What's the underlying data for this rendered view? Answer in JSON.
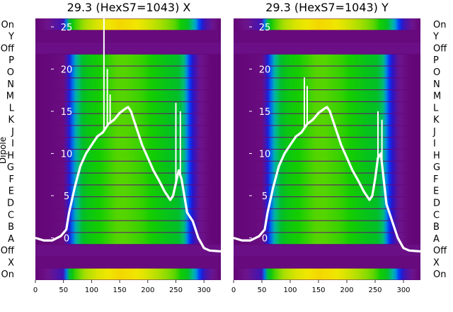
{
  "chart_data": [
    {
      "type": "heatmap",
      "title": "29.3 (HexS7=1043) X",
      "ylabel": "Dipole",
      "row_labels_top_to_bottom": [
        "On",
        "Y",
        "Off",
        "P",
        "O",
        "N",
        "M",
        "L",
        "K",
        "J",
        "I",
        "H",
        "G",
        "F",
        "E",
        "D",
        "C",
        "B",
        "A",
        "Off",
        "X",
        "On"
      ],
      "xticks": [
        0,
        50,
        100,
        150,
        200,
        250,
        300
      ],
      "xlim": [
        0,
        330
      ],
      "overlay_yticks": [
        0,
        5,
        10,
        15,
        20,
        25
      ],
      "overlay_ylim": [
        -5,
        26
      ],
      "overlay_curve": {
        "x": [
          0,
          15,
          30,
          45,
          55,
          60,
          70,
          80,
          90,
          100,
          110,
          120,
          130,
          140,
          150,
          160,
          165,
          170,
          180,
          190,
          200,
          210,
          220,
          230,
          240,
          245,
          250,
          255,
          260,
          265,
          270,
          275,
          280,
          285,
          290,
          300,
          310,
          330
        ],
        "y": [
          0,
          -0.3,
          -0.3,
          0.2,
          1,
          3,
          6,
          8.5,
          10,
          11,
          12,
          12.5,
          13.5,
          14,
          14.8,
          15.3,
          15.5,
          15,
          13,
          11,
          9.5,
          8,
          6.8,
          5.5,
          4.5,
          5,
          6.5,
          8,
          7,
          5,
          3,
          2.5,
          2,
          1,
          0,
          -1.2,
          -1.5,
          -1.6
        ]
      },
      "overlay_spikes": [
        {
          "x": 122,
          "y_top": 27
        },
        {
          "x": 128,
          "y_top": 20
        },
        {
          "x": 133,
          "y_top": 17
        },
        {
          "x": 250,
          "y_top": 16
        },
        {
          "x": 258,
          "y_top": 15
        }
      ],
      "intensity_profile": {
        "x": [
          0,
          50,
          60,
          70,
          80,
          90,
          100,
          115,
          130,
          145,
          160,
          175,
          190,
          205,
          220,
          235,
          245,
          255,
          265,
          270,
          280,
          290,
          300,
          310,
          330
        ],
        "v": [
          0.02,
          0.05,
          0.2,
          0.42,
          0.55,
          0.62,
          0.66,
          0.7,
          0.72,
          0.74,
          0.74,
          0.73,
          0.72,
          0.7,
          0.66,
          0.62,
          0.6,
          0.58,
          0.5,
          0.35,
          0.18,
          0.1,
          0.06,
          0.03,
          0.02
        ]
      },
      "on_band_profile": {
        "x": [
          0,
          50,
          60,
          70,
          90,
          110,
          130,
          150,
          170,
          190,
          210,
          230,
          250,
          270,
          285,
          300,
          330
        ],
        "v": [
          0.02,
          0.15,
          0.55,
          0.72,
          0.8,
          0.84,
          0.86,
          0.88,
          0.87,
          0.85,
          0.82,
          0.78,
          0.74,
          0.62,
          0.4,
          0.15,
          0.02
        ]
      }
    },
    {
      "type": "heatmap",
      "title": "29.3 (HexS7=1043) Y",
      "ylabel": "",
      "row_labels_top_to_bottom": [
        "On",
        "Y",
        "Off",
        "P",
        "O",
        "N",
        "M",
        "L",
        "K",
        "J",
        "I",
        "H",
        "G",
        "F",
        "E",
        "D",
        "C",
        "B",
        "A",
        "Off",
        "X",
        "On"
      ],
      "xticks": [
        0,
        50,
        100,
        150,
        200,
        250,
        300
      ],
      "xlim": [
        0,
        330
      ],
      "overlay_yticks": [
        0,
        5,
        10,
        15,
        20,
        25
      ],
      "overlay_ylim": [
        -5,
        26
      ],
      "overlay_curve": {
        "x": [
          0,
          15,
          30,
          45,
          55,
          60,
          70,
          80,
          90,
          100,
          110,
          120,
          130,
          140,
          150,
          160,
          165,
          170,
          180,
          190,
          200,
          210,
          220,
          230,
          240,
          245,
          250,
          255,
          260,
          265,
          270,
          275,
          280,
          285,
          290,
          300,
          310,
          330
        ],
        "y": [
          0,
          -0.3,
          -0.3,
          0.2,
          1,
          3,
          6,
          8.5,
          10,
          11,
          12,
          12.5,
          13.5,
          14,
          14.8,
          15.3,
          15.5,
          15,
          13,
          11,
          9.5,
          8,
          6.8,
          5.5,
          4.5,
          5,
          7,
          9.5,
          10,
          7,
          4,
          3,
          2,
          1,
          0,
          -1.2,
          -1.5,
          -1.6
        ]
      },
      "overlay_spikes": [
        {
          "x": 125,
          "y_top": 19
        },
        {
          "x": 130,
          "y_top": 18
        },
        {
          "x": 255,
          "y_top": 15
        },
        {
          "x": 262,
          "y_top": 14
        }
      ],
      "intensity_profile": {
        "x": [
          0,
          50,
          60,
          70,
          80,
          90,
          100,
          115,
          130,
          145,
          160,
          175,
          190,
          205,
          220,
          235,
          245,
          255,
          265,
          270,
          280,
          290,
          300,
          310,
          330
        ],
        "v": [
          0.02,
          0.05,
          0.2,
          0.42,
          0.55,
          0.62,
          0.66,
          0.7,
          0.72,
          0.74,
          0.74,
          0.73,
          0.72,
          0.7,
          0.66,
          0.62,
          0.6,
          0.58,
          0.5,
          0.35,
          0.18,
          0.1,
          0.06,
          0.03,
          0.02
        ]
      },
      "on_band_profile": {
        "x": [
          0,
          50,
          60,
          70,
          90,
          110,
          130,
          150,
          170,
          190,
          210,
          230,
          250,
          270,
          285,
          300,
          330
        ],
        "v": [
          0.02,
          0.15,
          0.55,
          0.72,
          0.8,
          0.84,
          0.86,
          0.88,
          0.87,
          0.85,
          0.82,
          0.78,
          0.74,
          0.62,
          0.4,
          0.15,
          0.02
        ]
      }
    }
  ]
}
